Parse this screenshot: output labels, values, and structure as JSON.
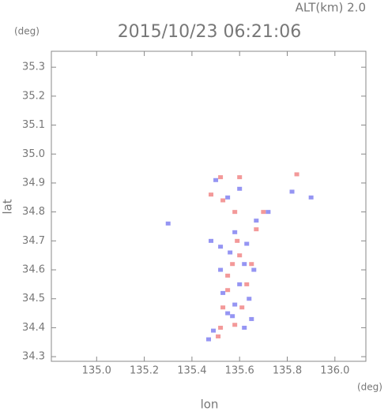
{
  "chart_data": {
    "type": "scatter",
    "title": "2015/10/23 06:21:06",
    "subtitle": "ALT(km) 2.0",
    "y_unit": "(deg)",
    "x_unit": "(deg)",
    "xlabel": "lon",
    "ylabel": "lat",
    "xlim": [
      134.81,
      136.13
    ],
    "ylim": [
      34.284,
      35.355
    ],
    "xticks": [
      {
        "value": 135,
        "label": "135.0"
      },
      135.2,
      135.4,
      135.6,
      135.8,
      {
        "value": 136,
        "label": "136.0"
      }
    ],
    "yticks": [
      34.3,
      34.4,
      34.5,
      34.6,
      34.7,
      34.8,
      34.9,
      {
        "value": 35,
        "label": "35.0"
      },
      35.1,
      35.2,
      35.3
    ],
    "series": [
      {
        "color": "#7b7bf0",
        "x": [
          135.58,
          135.56,
          135.62,
          135.52,
          135.6,
          135.64,
          135.55,
          135.65,
          135.49,
          135.47,
          135.67,
          135.72,
          135.55,
          135.82,
          135.9,
          135.48,
          135.62,
          135.58,
          135.66,
          135.53,
          135.3,
          135.6,
          135.5,
          135.57,
          135.52,
          135.63
        ],
        "values": [
          34.73,
          34.66,
          34.62,
          34.6,
          34.55,
          34.5,
          34.45,
          34.43,
          34.39,
          34.36,
          34.77,
          34.8,
          34.85,
          34.87,
          34.85,
          34.7,
          34.4,
          34.48,
          34.6,
          34.52,
          34.76,
          34.88,
          34.91,
          34.44,
          34.68,
          34.69
        ]
      },
      {
        "color": "#f08080",
        "x": [
          135.52,
          135.6,
          135.6,
          135.55,
          135.63,
          135.52,
          135.58,
          135.53,
          135.61,
          135.48,
          135.53,
          135.67,
          135.58,
          135.84,
          135.65,
          135.57,
          135.51,
          135.59,
          135.7,
          135.55
        ],
        "values": [
          34.92,
          34.92,
          34.65,
          34.58,
          34.55,
          34.4,
          34.41,
          34.47,
          34.47,
          34.86,
          34.84,
          34.74,
          34.8,
          34.93,
          34.62,
          34.62,
          34.37,
          34.7,
          34.8,
          34.53
        ]
      }
    ]
  }
}
